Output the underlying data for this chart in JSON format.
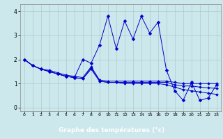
{
  "title": "Graphe des températures (°c)",
  "bg_color": "#cce8ec",
  "plot_bg_color": "#cce8ec",
  "label_bg_color": "#0000aa",
  "label_fg_color": "#ffffff",
  "line_color": "#0000cc",
  "grid_color": "#aacccc",
  "xlim": [
    -0.5,
    23.5
  ],
  "ylim": [
    -0.15,
    4.3
  ],
  "xticks": [
    0,
    1,
    2,
    3,
    4,
    5,
    6,
    7,
    8,
    9,
    10,
    11,
    12,
    13,
    14,
    15,
    16,
    17,
    18,
    19,
    20,
    21,
    22,
    23
  ],
  "yticks": [
    0,
    1,
    2,
    3,
    4
  ],
  "series1_x": [
    0,
    1,
    2,
    3,
    4,
    5,
    6,
    7,
    8,
    9,
    10,
    11,
    12,
    13,
    14,
    15,
    16,
    17,
    18,
    19,
    20,
    21,
    22,
    23
  ],
  "series1_y": [
    2.0,
    1.75,
    1.6,
    1.55,
    1.45,
    1.35,
    1.3,
    1.25,
    1.7,
    1.15,
    1.1,
    1.1,
    1.1,
    1.1,
    1.1,
    1.1,
    1.1,
    1.1,
    1.05,
    1.0,
    1.0,
    1.0,
    1.0,
    1.0
  ],
  "series2_x": [
    0,
    1,
    2,
    3,
    4,
    5,
    6,
    7,
    8,
    9,
    10,
    11,
    12,
    13,
    14,
    15,
    16,
    17,
    18,
    19,
    20,
    21,
    22,
    23
  ],
  "series2_y": [
    2.0,
    1.75,
    1.6,
    1.5,
    1.4,
    1.3,
    1.25,
    1.2,
    1.65,
    1.1,
    1.05,
    1.05,
    1.05,
    1.05,
    1.05,
    1.05,
    1.05,
    1.05,
    0.95,
    0.9,
    0.9,
    0.85,
    0.82,
    0.8
  ],
  "series3_x": [
    0,
    1,
    2,
    3,
    4,
    5,
    6,
    7,
    8,
    9,
    10,
    11,
    12,
    13,
    14,
    15,
    16,
    17,
    18,
    19,
    20,
    21,
    22,
    23
  ],
  "series3_y": [
    2.0,
    1.75,
    1.6,
    1.5,
    1.4,
    1.3,
    1.25,
    1.2,
    1.6,
    1.1,
    1.05,
    1.05,
    1.0,
    1.0,
    1.0,
    1.0,
    1.0,
    0.95,
    0.85,
    0.75,
    0.7,
    0.65,
    0.6,
    0.55
  ],
  "series4_x": [
    0,
    1,
    2,
    3,
    4,
    5,
    6,
    7,
    8,
    9,
    10,
    11,
    12,
    13,
    14,
    15,
    16,
    17,
    18,
    19,
    20,
    21,
    22,
    23
  ],
  "series4_y": [
    2.0,
    1.75,
    1.6,
    1.5,
    1.4,
    1.3,
    1.25,
    2.0,
    1.85,
    2.6,
    3.8,
    2.45,
    3.6,
    2.85,
    3.8,
    3.1,
    3.55,
    1.55,
    0.7,
    0.3,
    1.05,
    0.3,
    0.4,
    0.95
  ]
}
